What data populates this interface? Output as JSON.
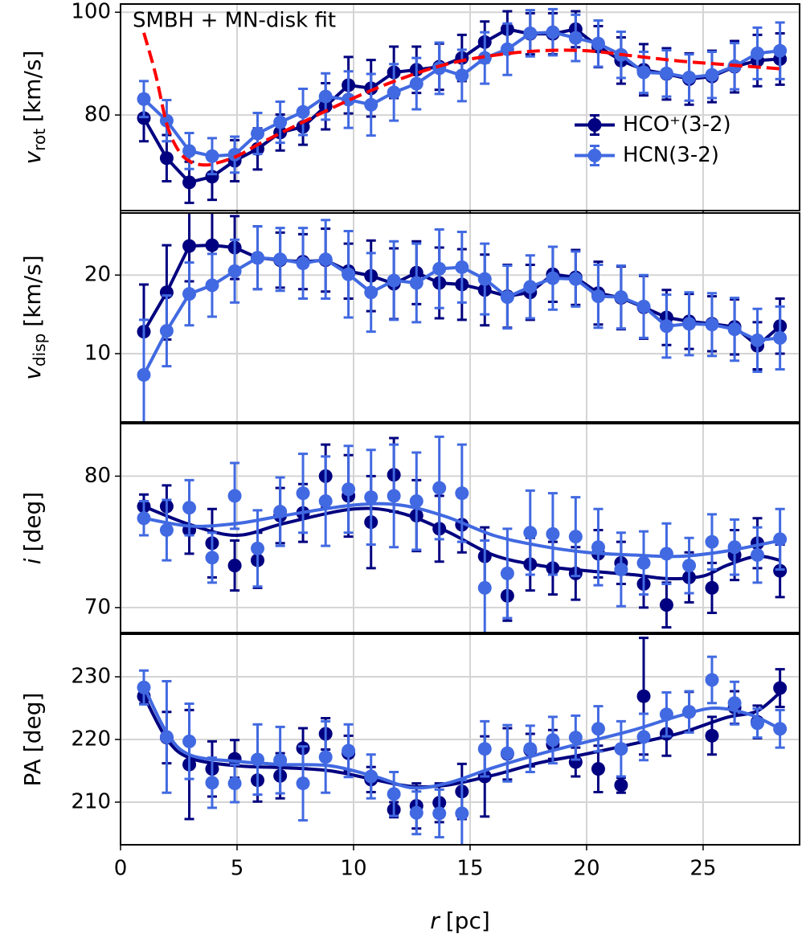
{
  "chart_data": [
    {
      "type": "line",
      "ylabel": {
        "symbol": "v",
        "subscript": "rot",
        "unit": "[km/s]"
      },
      "xlim": [
        0,
        29.14
      ],
      "xticks": [
        0,
        5,
        10,
        15,
        20,
        25
      ],
      "ylim": [
        61.4,
        101.6
      ],
      "yticks": [
        80,
        100
      ],
      "grid": true,
      "legend": "center right",
      "x": [
        1.0,
        1.98,
        2.95,
        3.93,
        4.9,
        5.88,
        6.85,
        7.83,
        8.8,
        9.78,
        10.75,
        11.73,
        12.7,
        13.68,
        14.65,
        15.63,
        16.6,
        17.58,
        18.55,
        19.53,
        20.5,
        21.48,
        22.45,
        23.43,
        24.4,
        25.38,
        26.35,
        27.33,
        28.3
      ],
      "series": [
        {
          "name": "HCO⁺(3-2)",
          "color": "#000080",
          "values": [
            79.4,
            71.6,
            66.9,
            68,
            71.1,
            73.4,
            76.6,
            77.7,
            81.7,
            85.8,
            85.2,
            88.3,
            88.8,
            89.4,
            91.1,
            94.2,
            96.7,
            95.8,
            95.8,
            96.7,
            93.3,
            90.6,
            88.8,
            88,
            87,
            87.5,
            89.4,
            90.6,
            90.9
          ],
          "errors": [
            4.5,
            4.5,
            4,
            4.5,
            4,
            4,
            3.5,
            3.5,
            4.5,
            5.5,
            5.5,
            5,
            4.5,
            4.5,
            4.5,
            4,
            3.5,
            4,
            4,
            3.5,
            4,
            4.5,
            5,
            5,
            5,
            5,
            5,
            5,
            5
          ]
        },
        {
          "name": "HCN(3-2)",
          "color": "#4169e1",
          "values": [
            83.1,
            78.9,
            73,
            72,
            72.3,
            76.4,
            78.6,
            80.6,
            83.6,
            83,
            82,
            84.4,
            86.1,
            89.1,
            87.7,
            91.1,
            92.8,
            95.9,
            96.1,
            95,
            93.9,
            91.7,
            88.3,
            88.1,
            87.3,
            87.8,
            89.5,
            92,
            92.5
          ],
          "errors": [
            3.5,
            4,
            3.5,
            3.5,
            3.5,
            4,
            4,
            4.5,
            4.5,
            5.5,
            6,
            5.5,
            5,
            5,
            5,
            5,
            5,
            4.5,
            4.5,
            4.5,
            4.5,
            4.5,
            4,
            4.5,
            4.5,
            4.5,
            4.5,
            5,
            5.5
          ]
        }
      ],
      "fit": {
        "label": "SMBH + MN-disk fit",
        "color": "#ff0000",
        "x": [
          1,
          1.5,
          2,
          2.5,
          3,
          3.5,
          4,
          5,
          6,
          8,
          10,
          12,
          14,
          16,
          18,
          20,
          22,
          24,
          26,
          28.3
        ],
        "values": [
          96,
          88,
          78,
          73,
          70.9,
          70.3,
          70.5,
          72,
          74.5,
          79,
          83.3,
          87,
          89.9,
          91.6,
          92.5,
          92.5,
          91.5,
          90.5,
          89.8,
          89
        ]
      }
    },
    {
      "type": "line",
      "ylabel": {
        "symbol": "v",
        "subscript": "disp",
        "unit": "[km/s]"
      },
      "xlim": [
        0,
        29.14
      ],
      "xticks": [
        0,
        5,
        10,
        15,
        20,
        25
      ],
      "ylim": [
        1.3,
        27.9
      ],
      "yticks": [
        10,
        20
      ],
      "grid": true,
      "x": [
        1.0,
        1.98,
        2.95,
        3.93,
        4.9,
        5.88,
        6.85,
        7.83,
        8.8,
        9.78,
        10.75,
        11.73,
        12.7,
        13.68,
        14.65,
        15.63,
        16.6,
        17.58,
        18.55,
        19.53,
        20.5,
        21.48,
        22.45,
        23.43,
        24.4,
        25.38,
        26.35,
        27.33,
        28.3
      ],
      "series": [
        {
          "name": "HCO⁺(3-2)",
          "color": "#000080",
          "values": [
            12.8,
            17.8,
            23.7,
            23.8,
            23.5,
            22.2,
            21.9,
            21.7,
            21.9,
            20.5,
            19.9,
            18.9,
            20.3,
            19,
            18.8,
            18.1,
            17.3,
            17.8,
            20.1,
            19.7,
            17.7,
            17.1,
            15.9,
            14.6,
            14.1,
            13.8,
            13.4,
            11,
            13.5
          ],
          "errors": [
            6,
            6,
            4.5,
            5,
            4,
            4,
            3.5,
            3.5,
            4,
            3.5,
            4.5,
            4.5,
            4,
            4.5,
            4.5,
            4.5,
            4,
            3.5,
            3.5,
            3.5,
            4,
            4,
            4,
            3.5,
            3.5,
            3.5,
            3.5,
            3,
            3.5
          ]
        },
        {
          "name": "HCN(3-2)",
          "color": "#4169e1",
          "values": [
            7.3,
            12.9,
            17.6,
            18.7,
            20.5,
            22.2,
            22,
            21.5,
            22,
            20.1,
            17.8,
            19.3,
            19,
            20.8,
            21,
            19.5,
            17.2,
            18.5,
            19.6,
            19.5,
            17.3,
            17.2,
            16,
            13.5,
            13.8,
            13.7,
            13.1,
            11.7,
            12
          ],
          "errors": [
            7,
            4.5,
            4,
            4,
            4,
            4,
            4,
            4.5,
            5,
            5.5,
            5,
            5,
            5,
            5,
            4.5,
            4.5,
            4,
            4,
            4,
            3.5,
            4,
            4,
            4,
            4,
            4,
            4,
            4,
            4,
            4
          ]
        }
      ]
    },
    {
      "type": "line",
      "ylabel": {
        "symbol": "i",
        "unit": "[deg]"
      },
      "xlim": [
        0,
        29.14
      ],
      "xticks": [
        0,
        5,
        10,
        15,
        20,
        25
      ],
      "ylim": [
        68.1,
        84.0
      ],
      "yticks": [
        70,
        80
      ],
      "grid": true,
      "x": [
        1.0,
        1.98,
        2.95,
        3.93,
        4.9,
        5.88,
        6.85,
        7.83,
        8.8,
        9.78,
        10.75,
        11.73,
        12.7,
        13.68,
        14.65,
        15.63,
        16.6,
        17.58,
        18.55,
        19.53,
        20.5,
        21.48,
        22.45,
        23.43,
        24.4,
        25.38,
        26.35,
        27.33,
        28.3
      ],
      "series": [
        {
          "name": "HCO⁺(3-2)",
          "color": "#000080",
          "values": [
            77.7,
            77.7,
            75.9,
            74.9,
            73.2,
            73.6,
            77,
            77.2,
            80,
            78.5,
            76.5,
            80.1,
            77,
            76,
            76.3,
            73.9,
            70.9,
            73.3,
            73,
            72.6,
            74.1,
            73.4,
            71.8,
            70.2,
            72.3,
            71.5,
            74,
            74.9,
            72.8
          ],
          "errors": [
            0.9,
            1.6,
            1.8,
            2.6,
            1.9,
            2.1,
            2.1,
            2.2,
            2.4,
            3.1,
            3.5,
            2.8,
            2.7,
            2.5,
            2.1,
            2.2,
            1.9,
            2,
            2,
            2,
            1.8,
            1.6,
            1.8,
            1.7,
            1.9,
            1.9,
            1.9,
            1.9,
            2
          ],
          "smooth": {
            "x": [
              1,
              3,
              5,
              7,
              10,
              12,
              14,
              16,
              18,
              20,
              22,
              23.5,
              25,
              26,
              27.3,
              28.3
            ],
            "values": [
              77.7,
              76.3,
              75.5,
              76.4,
              77.5,
              77.2,
              75.8,
              74,
              73.2,
              72.8,
              72.5,
              72.2,
              72.4,
              73.2,
              73.9,
              73.6
            ]
          }
        },
        {
          "name": "HCN(3-2)",
          "color": "#4169e1",
          "values": [
            76.8,
            75.9,
            77.6,
            73.8,
            78.5,
            74.5,
            77.3,
            78.7,
            78.1,
            79,
            78.4,
            78.5,
            78.1,
            79.1,
            78.7,
            71.5,
            72.6,
            75.7,
            75.6,
            75.4,
            74.6,
            72.9,
            73.4,
            74.1,
            73.2,
            75,
            74.6,
            74,
            75.2
          ],
          "errors": [
            1.3,
            2.3,
            2.1,
            1.9,
            2.5,
            2.9,
            2.6,
            3,
            3.4,
            3.3,
            3.6,
            3.9,
            3.7,
            3.9,
            3.7,
            3.6,
            3.4,
            3.2,
            3.1,
            3,
            2.9,
            2.8,
            2.4,
            2.3,
            2.1,
            2.1,
            2.1,
            2.1,
            2.3
          ],
          "smooth": {
            "x": [
              1,
              3,
              5,
              7,
              10,
              12,
              14,
              16,
              18,
              20,
              22,
              24,
              26,
              28.3
            ],
            "values": [
              76.8,
              76.2,
              76.4,
              77,
              77.8,
              77.8,
              76.9,
              75.5,
              74.7,
              74.2,
              74,
              73.9,
              74.3,
              75.1
            ]
          }
        }
      ]
    },
    {
      "type": "line",
      "ylabel": {
        "symbol": "PA",
        "unit": "[deg]"
      },
      "xlabel": {
        "symbol": "r",
        "unit": "[pc]"
      },
      "xlim": [
        0,
        29.14
      ],
      "xticks": [
        0,
        5,
        10,
        15,
        20,
        25
      ],
      "ylim": [
        203.2,
        236.8
      ],
      "yticks": [
        210,
        220,
        230
      ],
      "grid": true,
      "x": [
        1.0,
        1.98,
        2.95,
        3.93,
        4.9,
        5.88,
        6.85,
        7.83,
        8.8,
        9.78,
        10.75,
        11.73,
        12.7,
        13.68,
        14.65,
        15.63,
        16.6,
        17.58,
        18.55,
        19.53,
        20.5,
        21.48,
        22.45,
        23.43,
        24.4,
        25.38,
        26.35,
        27.33,
        28.3
      ],
      "series": [
        {
          "name": "HCO⁺(3-2)",
          "color": "#000080",
          "values": [
            226.9,
            220.3,
            216,
            215.3,
            216.9,
            213.5,
            214.2,
            218.6,
            220.9,
            217.8,
            213.6,
            208.8,
            209.4,
            209.9,
            211.7,
            214.1,
            217.7,
            218.3,
            219.2,
            216.4,
            215.3,
            212.7,
            226.9,
            220.9,
            224.4,
            220.6,
            225.1,
            222.8,
            228.2
          ],
          "errors": [
            1.2,
            4.1,
            8.7,
            4.4,
            3,
            3.4,
            3.6,
            3.2,
            2.5,
            2.8,
            2,
            1.2,
            3.6,
            3.1,
            4.4,
            6.4,
            4.1,
            2.6,
            2.3,
            2.3,
            3.7,
            1.2,
            9.3,
            3.5,
            3.2,
            3,
            2.6,
            2.6,
            3
          ],
          "smooth": {
            "x": [
              1,
              2,
              3,
              5,
              7,
              9,
              11,
              12.5,
              14,
              16,
              18,
              20,
              22,
              24,
              26,
              27.3,
              28.3
            ],
            "values": [
              227,
              220,
              217,
              215.8,
              215.5,
              215,
              213.5,
              212.5,
              212.7,
              214.3,
              216.3,
              217.7,
              219.3,
              221,
              223.5,
              224.5,
              227.5
            ]
          }
        },
        {
          "name": "HCN(3-2)",
          "color": "#4169e1",
          "values": [
            228.3,
            220.4,
            219.7,
            213.1,
            213,
            216.8,
            216.7,
            213,
            217.2,
            218.2,
            214.1,
            211.3,
            208.3,
            208.2,
            208.2,
            218.5,
            217.8,
            218.5,
            219.9,
            220.3,
            221.7,
            218.5,
            220.4,
            224,
            224.4,
            229.5,
            225.8,
            222.6,
            221.7
          ],
          "errors": [
            2.7,
            8.9,
            6,
            4,
            3,
            5.6,
            5.3,
            5.9,
            5.7,
            4.2,
            3.5,
            3.5,
            3.4,
            3.8,
            5.3,
            4.4,
            4.5,
            3.7,
            3.7,
            3.5,
            3.6,
            4.4,
            3.7,
            3.5,
            3.3,
            3.7,
            3.4,
            2.3,
            3
          ],
          "smooth": {
            "x": [
              1,
              2,
              3,
              5,
              7,
              9,
              11,
              12.5,
              14,
              16,
              18,
              20,
              22,
              24,
              25.5,
              27,
              28.3
            ],
            "values": [
              228.5,
              221,
              217.5,
              216.5,
              216,
              215.8,
              214,
              212.3,
              213,
              215.5,
              217.7,
              219.6,
              221.5,
              223.8,
              225,
              224,
              221.7
            ]
          }
        }
      ]
    }
  ]
}
